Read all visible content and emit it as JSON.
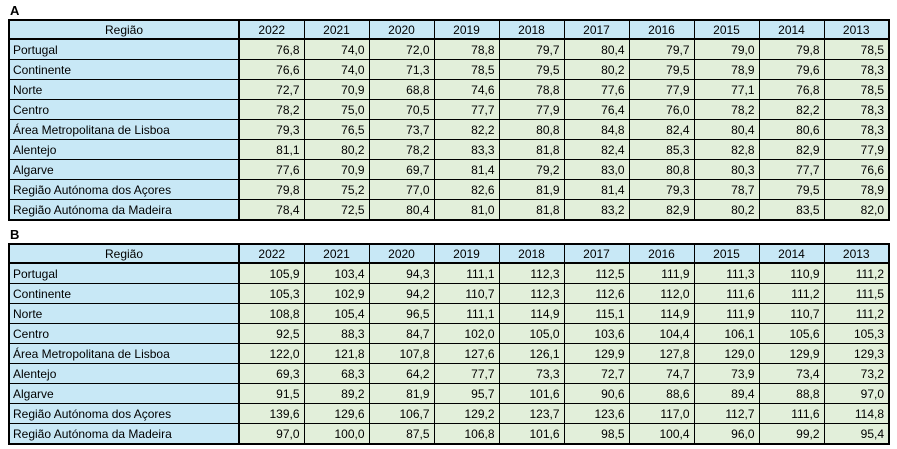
{
  "colors": {
    "header_fill": "#C8E8F6",
    "region_fill": "#C8E8F6",
    "value_fill": "#E2EFDA",
    "border": "#000000",
    "text": "#000000",
    "background": "#FFFFFF"
  },
  "chart_data": [
    {
      "type": "table",
      "label": "A",
      "region_header": "Região",
      "years": [
        "2022",
        "2021",
        "2020",
        "2019",
        "2018",
        "2017",
        "2016",
        "2015",
        "2014",
        "2013"
      ],
      "rows": [
        {
          "region": "Portugal",
          "values": [
            "76,8",
            "74,0",
            "72,0",
            "78,8",
            "79,7",
            "80,4",
            "79,7",
            "79,0",
            "79,8",
            "78,5"
          ]
        },
        {
          "region": "Continente",
          "values": [
            "76,6",
            "74,0",
            "71,3",
            "78,5",
            "79,5",
            "80,2",
            "79,5",
            "78,9",
            "79,6",
            "78,3"
          ]
        },
        {
          "region": "Norte",
          "values": [
            "72,7",
            "70,9",
            "68,8",
            "74,6",
            "78,8",
            "77,6",
            "77,9",
            "77,1",
            "76,8",
            "78,5"
          ]
        },
        {
          "region": "Centro",
          "values": [
            "78,2",
            "75,0",
            "70,5",
            "77,7",
            "77,9",
            "76,4",
            "76,0",
            "78,2",
            "82,2",
            "78,3"
          ]
        },
        {
          "region": "Área Metropolitana de Lisboa",
          "values": [
            "79,3",
            "76,5",
            "73,7",
            "82,2",
            "80,8",
            "84,8",
            "82,4",
            "80,4",
            "80,6",
            "78,3"
          ]
        },
        {
          "region": "Alentejo",
          "values": [
            "81,1",
            "80,2",
            "78,2",
            "83,3",
            "81,8",
            "82,4",
            "85,3",
            "82,8",
            "82,9",
            "77,9"
          ]
        },
        {
          "region": "Algarve",
          "values": [
            "77,6",
            "70,9",
            "69,7",
            "81,4",
            "79,2",
            "83,0",
            "80,8",
            "80,3",
            "77,7",
            "76,6"
          ]
        },
        {
          "region": "Região Autónoma dos Açores",
          "values": [
            "79,8",
            "75,2",
            "77,0",
            "82,6",
            "81,9",
            "81,4",
            "79,3",
            "78,7",
            "79,5",
            "78,9"
          ]
        },
        {
          "region": "Região Autónoma da Madeira",
          "values": [
            "78,4",
            "72,5",
            "80,4",
            "81,0",
            "81,8",
            "83,2",
            "82,9",
            "80,2",
            "83,5",
            "82,0"
          ]
        }
      ]
    },
    {
      "type": "table",
      "label": "B",
      "region_header": "Região",
      "years": [
        "2022",
        "2021",
        "2020",
        "2019",
        "2018",
        "2017",
        "2016",
        "2015",
        "2014",
        "2013"
      ],
      "rows": [
        {
          "region": "Portugal",
          "values": [
            "105,9",
            "103,4",
            "94,3",
            "111,1",
            "112,3",
            "112,5",
            "111,9",
            "111,3",
            "110,9",
            "111,2"
          ]
        },
        {
          "region": "Continente",
          "values": [
            "105,3",
            "102,9",
            "94,2",
            "110,7",
            "112,3",
            "112,6",
            "112,0",
            "111,6",
            "111,2",
            "111,5"
          ]
        },
        {
          "region": "Norte",
          "values": [
            "108,8",
            "105,4",
            "96,5",
            "111,1",
            "114,9",
            "115,1",
            "114,9",
            "111,9",
            "110,7",
            "111,2"
          ]
        },
        {
          "region": "Centro",
          "values": [
            "92,5",
            "88,3",
            "84,7",
            "102,0",
            "105,0",
            "103,6",
            "104,4",
            "106,1",
            "105,6",
            "105,3"
          ]
        },
        {
          "region": "Área Metropolitana de Lisboa",
          "values": [
            "122,0",
            "121,8",
            "107,8",
            "127,6",
            "126,1",
            "129,9",
            "127,8",
            "129,0",
            "129,9",
            "129,3"
          ]
        },
        {
          "region": "Alentejo",
          "values": [
            "69,3",
            "68,3",
            "64,2",
            "77,7",
            "73,3",
            "72,7",
            "74,7",
            "73,9",
            "73,4",
            "73,2"
          ]
        },
        {
          "region": "Algarve",
          "values": [
            "91,5",
            "89,2",
            "81,9",
            "95,7",
            "101,6",
            "90,6",
            "88,6",
            "89,4",
            "88,8",
            "97,0"
          ]
        },
        {
          "region": "Região Autónoma dos Açores",
          "values": [
            "139,6",
            "129,6",
            "106,7",
            "129,2",
            "123,7",
            "123,6",
            "117,0",
            "112,7",
            "111,6",
            "114,8"
          ]
        },
        {
          "region": "Região Autónoma da Madeira",
          "values": [
            "97,0",
            "100,0",
            "87,5",
            "106,8",
            "101,6",
            "98,5",
            "100,4",
            "96,0",
            "99,2",
            "95,4"
          ]
        }
      ]
    }
  ]
}
